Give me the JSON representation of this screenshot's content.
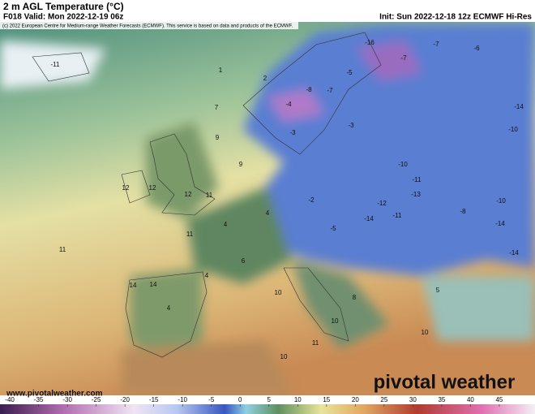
{
  "header": {
    "title": "2 m AGL Temperature (°C)",
    "valid": "F018 Valid: Mon 2022-12-19 06z",
    "init": "Init: Sun 2022-12-18 12z ECMWF Hi-Res",
    "copyright": "(c) 2022 European Centre for Medium-range Weather Forecasts (ECMWF). This service is based on data and products of the ECMWF."
  },
  "map_labels": [
    -11,
    1,
    2,
    7,
    9,
    9,
    12,
    12,
    12,
    11,
    11,
    11,
    14,
    14,
    4,
    10,
    10,
    11,
    10,
    10,
    -16,
    -7,
    -7,
    -6,
    -14,
    -10,
    -8,
    -7,
    -5,
    -4,
    -3,
    -3,
    -10,
    -11,
    -14,
    -11,
    -12,
    -13,
    -5,
    -2,
    4,
    4,
    6,
    4,
    8,
    5,
    -14,
    -8,
    -10,
    -14
  ],
  "footer": {
    "website": "www.pivotalweather.com",
    "logo": "pivotal weather"
  },
  "colorbar": {
    "range": [
      -41.7,
      51.2
    ],
    "ticks": [
      -40,
      -35,
      -30,
      -25,
      -20,
      -15,
      -10,
      -5,
      0,
      5,
      10,
      15,
      20,
      25,
      30,
      35,
      40,
      45
    ]
  }
}
